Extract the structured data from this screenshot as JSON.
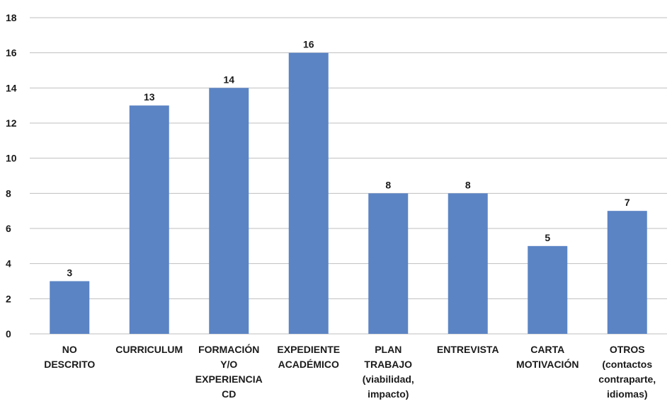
{
  "chart_data": {
    "type": "bar",
    "categories": [
      [
        "NO",
        "DESCRITO"
      ],
      [
        "CURRICULUM"
      ],
      [
        "FORMACIÓN",
        "Y/O",
        "EXPERIENCIA",
        "CD"
      ],
      [
        "EXPEDIENTE",
        "ACADÉMICO"
      ],
      [
        "PLAN",
        "TRABAJO",
        "(viabilidad,",
        "impacto)"
      ],
      [
        "ENTREVISTA"
      ],
      [
        "CARTA",
        "MOTIVACIÓN"
      ],
      [
        "OTROS",
        "(contactos",
        "contraparte,",
        "idiomas)"
      ]
    ],
    "values": [
      3,
      13,
      14,
      16,
      8,
      8,
      5,
      7
    ],
    "ylim": [
      0,
      18
    ],
    "yticks": [
      0,
      2,
      4,
      6,
      8,
      10,
      12,
      14,
      16,
      18
    ],
    "bar_color": "#5b84c4",
    "grid": true,
    "show_data_labels": true
  }
}
